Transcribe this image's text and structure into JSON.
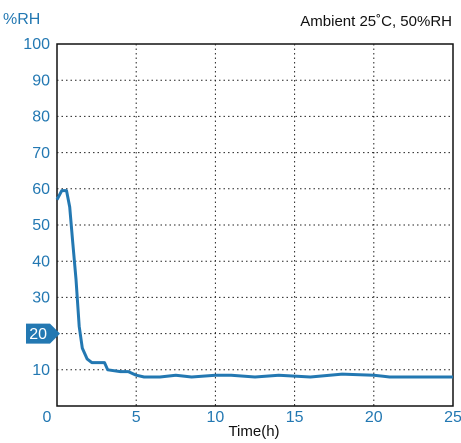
{
  "chart_data": {
    "type": "line",
    "annotation": "Ambient 25˚C, 50%RH",
    "y_label": "%RH",
    "x_label": "Time(h)",
    "xlim": [
      0,
      25
    ],
    "xticks": [
      0,
      5,
      10,
      15,
      20,
      25
    ],
    "ylim": [
      0,
      100
    ],
    "yticks": [
      10,
      20,
      30,
      40,
      50,
      60,
      70,
      80,
      90,
      100
    ],
    "highlight_ytick": 20,
    "grid": true,
    "x": [
      0,
      0.3,
      0.6,
      0.8,
      1,
      1.2,
      1.4,
      1.6,
      1.9,
      2.2,
      3,
      3.2,
      4,
      4.5,
      5,
      5.5,
      6.5,
      7.5,
      8.5,
      10,
      11,
      12.5,
      14,
      16,
      18,
      20,
      21,
      25
    ],
    "series": [
      {
        "color": "#2378b2",
        "values": [
          57,
          59.5,
          59.5,
          55,
          45,
          35,
          22,
          16,
          13,
          12,
          12,
          10,
          9.5,
          9.5,
          8.5,
          8,
          8,
          8.5,
          8,
          8.5,
          8.5,
          8,
          8.5,
          8,
          8.8,
          8.5,
          8,
          8
        ]
      }
    ]
  }
}
